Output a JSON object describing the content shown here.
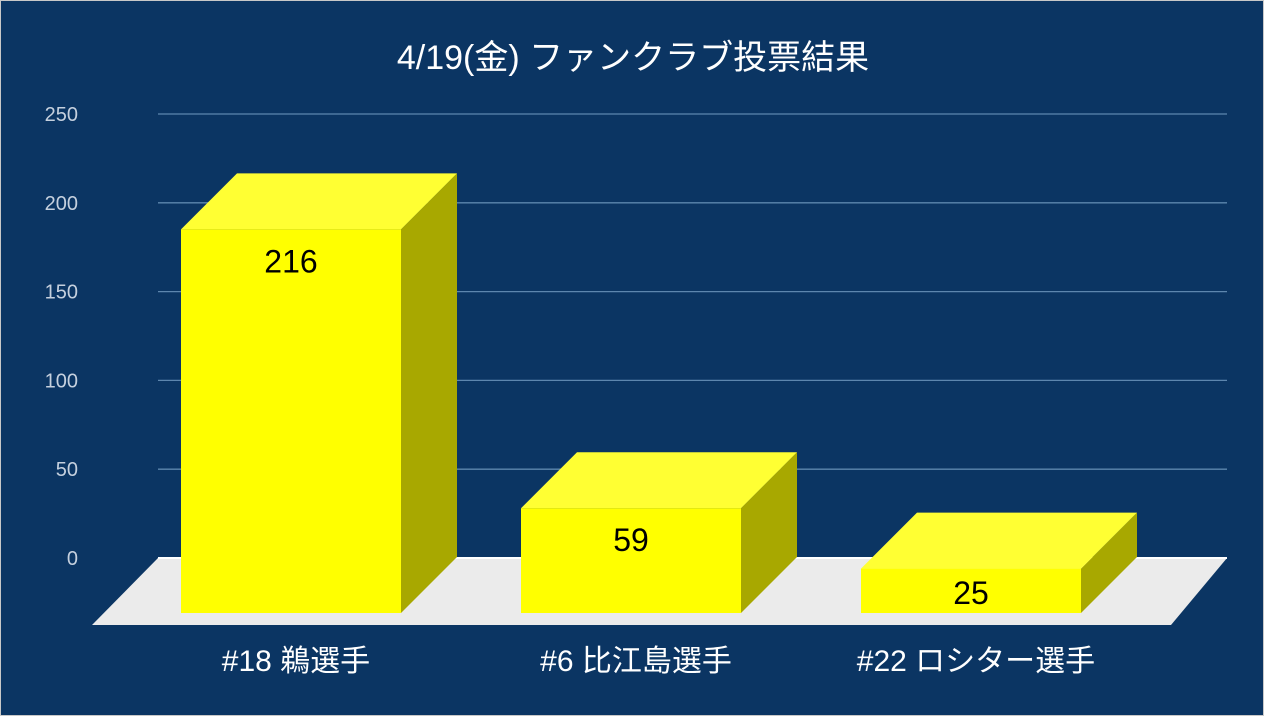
{
  "chart_data": {
    "type": "bar",
    "title": "4/19(金)  ファンクラブ投票結果",
    "categories": [
      "#18 鵜選手",
      "#6 比江島選手",
      "#22 ロシター選手"
    ],
    "values": [
      216,
      59,
      25
    ],
    "ylim": [
      0,
      250
    ],
    "yticks": [
      0,
      50,
      100,
      150,
      200,
      250
    ],
    "grid": true,
    "three_d": true,
    "data_labels": true,
    "legend": "none"
  },
  "colors": {
    "background": "#0b3563",
    "bar_front": "#ffff00",
    "bar_top": "#ffff33",
    "bar_side": "#a8a800",
    "floor": "#ebebeb",
    "gridline": "#5d86ae",
    "tick_text": "#c5d0de",
    "category_text": "#ffffff",
    "title_text": "#ffffff"
  }
}
